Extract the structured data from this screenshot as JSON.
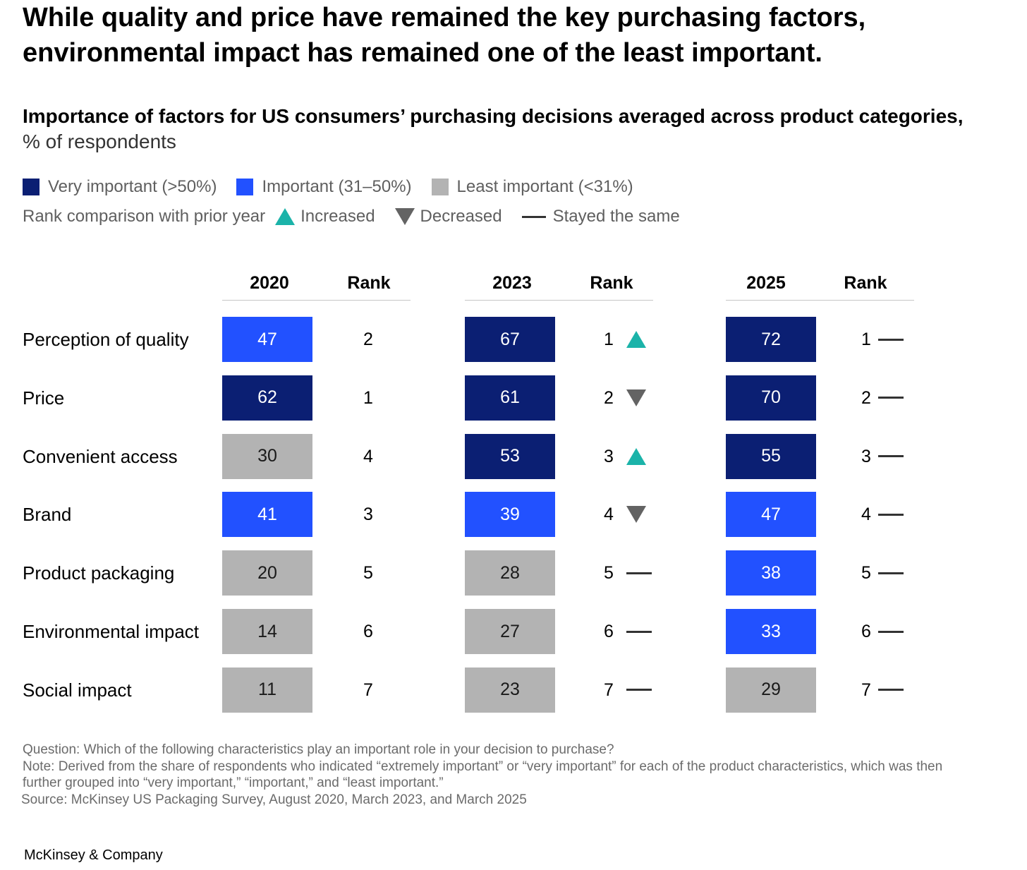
{
  "headline": {
    "line1": "While quality and price have remained the key purchasing factors,",
    "line2": "environmental impact has remained one of the least important."
  },
  "subtitle": {
    "main": "Importance of factors for US consumers’ purchasing decisions averaged across product categories,",
    "unit": "% of respondents"
  },
  "legend": {
    "importance": [
      {
        "label": "Very important (>50%)",
        "color": "#0b1f73"
      },
      {
        "label": "Important (31–50%)",
        "color": "#2251ff"
      },
      {
        "label": "Least important (<31%)",
        "color": "#b3b3b3"
      }
    ],
    "rank_title": "Rank comparison with prior year",
    "rank_marks": [
      {
        "label": "Increased",
        "icon": "triangle-up-icon"
      },
      {
        "label": "Decreased",
        "icon": "triangle-down-icon"
      },
      {
        "label": "Stayed the same",
        "icon": "dash-icon"
      }
    ]
  },
  "colors": {
    "very": "#0b1f73",
    "important": "#2251ff",
    "least": "#b3b3b3",
    "increase": "#1bb3a9",
    "decrease": "#636363",
    "same": "#333333"
  },
  "chart_data": {
    "type": "table",
    "title": "Importance of factors for US consumers’ purchasing decisions averaged across product categories,",
    "unit": "% of respondents",
    "rank_header": "Rank",
    "factors": [
      "Perception of quality",
      "Price",
      "Convenient access",
      "Brand",
      "Product packaging",
      "Environmental impact",
      "Social impact"
    ],
    "years": [
      {
        "year": "2020",
        "values": [
          47,
          62,
          30,
          41,
          20,
          14,
          11
        ],
        "categories": [
          "important",
          "very",
          "least",
          "important",
          "least",
          "least",
          "least"
        ],
        "ranks": [
          2,
          1,
          4,
          3,
          5,
          6,
          7
        ],
        "rank_changes": [
          null,
          null,
          null,
          null,
          null,
          null,
          null
        ]
      },
      {
        "year": "2023",
        "values": [
          67,
          61,
          53,
          39,
          28,
          27,
          23
        ],
        "categories": [
          "very",
          "very",
          "very",
          "important",
          "least",
          "least",
          "least"
        ],
        "ranks": [
          1,
          2,
          3,
          4,
          5,
          6,
          7
        ],
        "rank_changes": [
          "increased",
          "decreased",
          "increased",
          "decreased",
          "same",
          "same",
          "same"
        ]
      },
      {
        "year": "2025",
        "values": [
          72,
          70,
          55,
          47,
          38,
          33,
          29
        ],
        "categories": [
          "very",
          "very",
          "very",
          "important",
          "important",
          "important",
          "least"
        ],
        "ranks": [
          1,
          2,
          3,
          4,
          5,
          6,
          7
        ],
        "rank_changes": [
          "same",
          "same",
          "same",
          "same",
          "same",
          "same",
          "same"
        ]
      }
    ]
  },
  "footnotes": {
    "question": "Question: Which of the following characteristics play an important role in your decision to purchase?",
    "note1": "Note: Derived from the share of respondents who indicated “extremely important” or “very important” for each of the product characteristics, which was then",
    "note2": "further grouped into “very important,” “important,” and “least important.”",
    "source": "Source: McKinsey US Packaging Survey, August 2020, March 2023, and March 2025"
  },
  "brand": "McKinsey & Company"
}
